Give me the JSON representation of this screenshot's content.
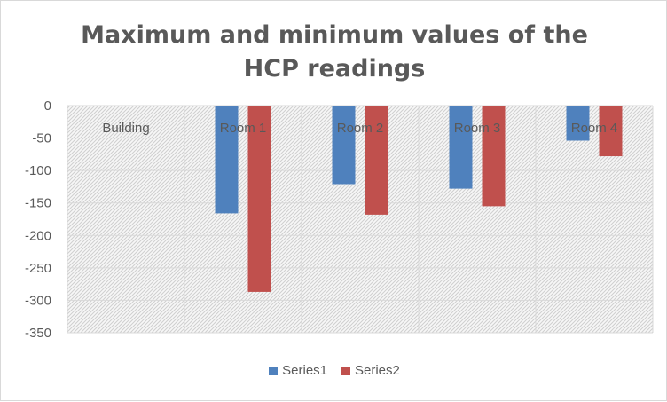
{
  "chart_data": {
    "type": "bar",
    "title_lines": [
      "Maximum and minimum values of the",
      "HCP readings"
    ],
    "categories": [
      "Building",
      "Room 1",
      "Room 2",
      "Room 3",
      "Room 4"
    ],
    "series": [
      {
        "name": "Series1",
        "color": "#4f81bd",
        "values": [
          0,
          -166,
          -121,
          -128,
          -54
        ]
      },
      {
        "name": "Series2",
        "color": "#c0504d",
        "values": [
          0,
          -287,
          -168,
          -155,
          -78
        ]
      }
    ],
    "ylim": [
      -350,
      0
    ],
    "yticks": [
      0,
      -50,
      -100,
      -150,
      -200,
      -250,
      -300,
      -350
    ],
    "grid": true,
    "legend_position": "bottom",
    "plot_background": "hatched-gray"
  }
}
